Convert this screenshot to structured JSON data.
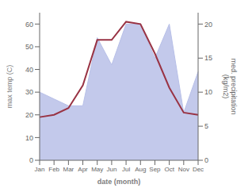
{
  "chart_data": {
    "type": "line",
    "xlabel": "date (month)",
    "ylabel": "max temp (C)",
    "y2label": "med. precipitation\n(kg/m2)",
    "categories": [
      "Jan",
      "Feb",
      "Mar",
      "Apr",
      "May",
      "Jun",
      "Jul",
      "Aug",
      "Sep",
      "Oct",
      "Nov",
      "Dec"
    ],
    "series": [
      {
        "type": "area",
        "axis": "y2",
        "color": "#b8c0e8",
        "values": [
          10,
          9,
          8,
          8,
          18,
          14,
          20,
          20,
          15,
          20,
          7,
          13
        ]
      },
      {
        "type": "line",
        "color": "#993344",
        "values": [
          19,
          20,
          23,
          33,
          53,
          53,
          61,
          60,
          47,
          32,
          21,
          20
        ]
      }
    ],
    "ylim": [
      0,
      65
    ],
    "yticks": [
      0,
      10,
      20,
      30,
      40,
      50,
      60
    ],
    "y2lim": [
      0,
      21.67
    ],
    "y2ticks": [
      0,
      5,
      10,
      15,
      20
    ],
    "grid": false
  }
}
